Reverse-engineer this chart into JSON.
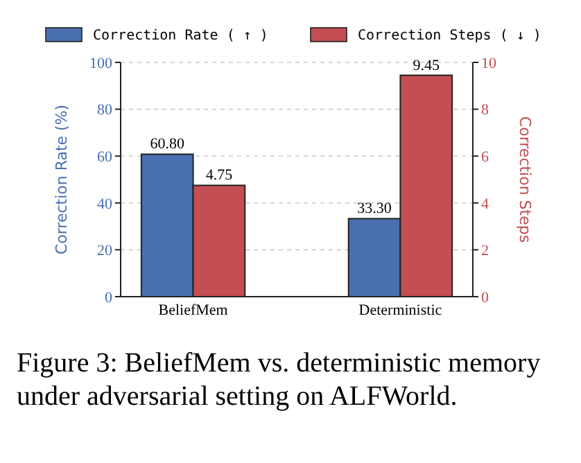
{
  "chart_data": {
    "type": "bar",
    "categories": [
      "BeliefMem",
      "Deterministic"
    ],
    "series": [
      {
        "name": "Correction Rate ( ↑ )",
        "color": "#4a6fb0",
        "values": [
          60.8,
          33.3
        ],
        "value_labels": [
          "60.80",
          "33.30"
        ]
      },
      {
        "name": "Correction Steps ( ↓ )",
        "color": "#c44e52",
        "values": [
          4.75,
          9.45
        ],
        "value_labels": [
          "4.75",
          "9.45"
        ],
        "axis": "y2"
      }
    ],
    "ylabel": "Correction Rate (%)",
    "y2label": "Correction Steps",
    "ylim": [
      0,
      100
    ],
    "yticks": [
      0,
      20,
      40,
      60,
      80,
      100
    ],
    "y2lim": [
      0,
      10
    ],
    "y2ticks": [
      0,
      2,
      4,
      6,
      8,
      10
    ],
    "grid": "y",
    "legend": "top",
    "annotations": [
      "Figure 3: BeliefMem vs. deterministic memory under adversarial setting on ALFWorld."
    ]
  }
}
